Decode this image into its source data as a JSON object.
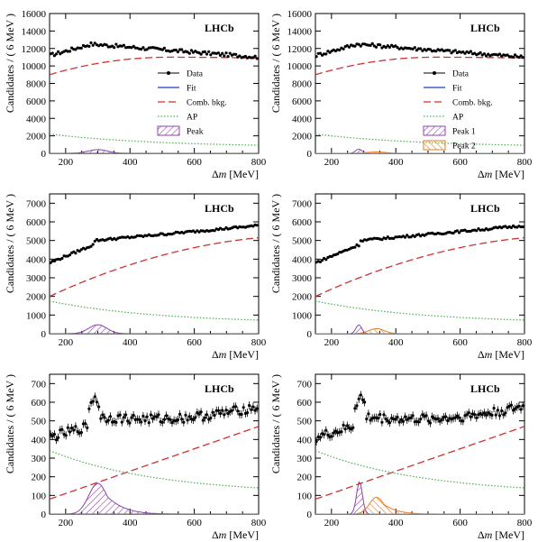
{
  "colors": {
    "data": "#000000",
    "fit": "#1f3fbf",
    "comb": "#d32f2f",
    "ap": "#4caf50",
    "peak": "#8e44ad",
    "peak2": "#e67e22"
  },
  "common": {
    "xlabel_prefix": "Δ",
    "xlabel_var": "m",
    "xlabel_unit": " [MeV]",
    "ylabel": "Candidates / ( 6 MeV )",
    "watermark": "LHCb",
    "xlim": [
      150,
      800
    ],
    "xticks": [
      "200",
      "400",
      "600",
      "800"
    ]
  },
  "chart_data": [
    {
      "type": "line",
      "xlim": [
        150,
        800
      ],
      "ylim": [
        0,
        16000
      ],
      "yticks": [
        "0",
        "2000",
        "4000",
        "6000",
        "8000",
        "10000",
        "12000",
        "14000",
        "16000"
      ],
      "data_shape": {
        "start": 11200,
        "peak_x": 280,
        "peak_val": 12500,
        "end": 11000,
        "noise": 200,
        "bump": 0
      },
      "comb": {
        "y_start": 9000,
        "y_max": 11000,
        "x_max": 520,
        "y_end": 10900
      },
      "ap": {
        "y_start": 2200,
        "y_end": 700
      },
      "peaks": [
        {
          "mu": 300,
          "sigma": 30,
          "amp": 420
        }
      ],
      "legend": [
        "Data",
        "Fit",
        "Comb. bkg.",
        "AP",
        "Peak"
      ]
    },
    {
      "type": "line",
      "xlim": [
        150,
        800
      ],
      "ylim": [
        0,
        16000
      ],
      "yticks": [
        "0",
        "2000",
        "4000",
        "6000",
        "8000",
        "10000",
        "12000",
        "14000",
        "16000"
      ],
      "data_shape": {
        "start": 11200,
        "peak_x": 280,
        "peak_val": 12500,
        "end": 11000,
        "noise": 200,
        "bump": 0
      },
      "comb": {
        "y_start": 9000,
        "y_max": 11000,
        "x_max": 520,
        "y_end": 10900
      },
      "ap": {
        "y_start": 2200,
        "y_end": 700
      },
      "peaks": [
        {
          "mu": 285,
          "sigma": 10,
          "amp": 480
        },
        {
          "mu": 340,
          "sigma": 28,
          "amp": 160
        }
      ],
      "legend": [
        "Data",
        "Fit",
        "Comb. bkg.",
        "AP",
        "Peak 1",
        "Peak 2"
      ]
    },
    {
      "type": "line",
      "xlim": [
        150,
        800
      ],
      "ylim": [
        0,
        7500
      ],
      "yticks": [
        "0",
        "1000",
        "2000",
        "3000",
        "4000",
        "5000",
        "6000",
        "7000"
      ],
      "data_shape": {
        "start": 3800,
        "rise_x": 290,
        "rise_val": 5000,
        "end": 5800,
        "noise": 60,
        "bump": 0
      },
      "comb": {
        "y_start": 2000,
        "y_end": 5150,
        "curv": 0.65
      },
      "ap": {
        "y_start": 1750,
        "y_end": 550
      },
      "peaks": [
        {
          "mu": 300,
          "sigma": 28,
          "amp": 480
        }
      ],
      "legend": []
    },
    {
      "type": "line",
      "xlim": [
        150,
        800
      ],
      "ylim": [
        0,
        7500
      ],
      "yticks": [
        "0",
        "1000",
        "2000",
        "3000",
        "4000",
        "5000",
        "6000",
        "7000"
      ],
      "data_shape": {
        "start": 3800,
        "rise_x": 290,
        "rise_val": 5000,
        "end": 5800,
        "noise": 60,
        "bump": 0
      },
      "comb": {
        "y_start": 2000,
        "y_end": 5150,
        "curv": 0.65
      },
      "ap": {
        "y_start": 1750,
        "y_end": 550
      },
      "peaks": [
        {
          "mu": 285,
          "sigma": 9,
          "amp": 480
        },
        {
          "mu": 340,
          "sigma": 24,
          "amp": 270
        }
      ],
      "legend": []
    },
    {
      "type": "line",
      "xlim": [
        150,
        800
      ],
      "ylim": [
        0,
        750
      ],
      "yticks": [
        "0",
        "100",
        "200",
        "300",
        "400",
        "500",
        "600",
        "700"
      ],
      "data_shape": {
        "start": 410,
        "spike_x": 290,
        "spike_val": 630,
        "mid": 520,
        "end": 580,
        "noise": 25,
        "bump": 1
      },
      "comb": {
        "y_start": 80,
        "y_end": 470,
        "curv": 0
      },
      "ap": {
        "y_start": 340,
        "y_end": 105
      },
      "peaks": [
        {
          "mu": 300,
          "sigma": 28,
          "amp": 165,
          "tail": 1
        }
      ],
      "legend": []
    },
    {
      "type": "line",
      "xlim": [
        150,
        800
      ],
      "ylim": [
        0,
        750
      ],
      "yticks": [
        "0",
        "100",
        "200",
        "300",
        "400",
        "500",
        "600",
        "700"
      ],
      "data_shape": {
        "start": 410,
        "spike_x": 290,
        "spike_val": 630,
        "mid": 520,
        "end": 580,
        "noise": 25,
        "bump": 1
      },
      "comb": {
        "y_start": 80,
        "y_end": 470,
        "curv": 0
      },
      "ap": {
        "y_start": 340,
        "y_end": 105
      },
      "peaks": [
        {
          "mu": 287,
          "sigma": 9,
          "amp": 175
        },
        {
          "mu": 340,
          "sigma": 22,
          "amp": 90,
          "tail": 1
        }
      ],
      "legend": []
    }
  ]
}
